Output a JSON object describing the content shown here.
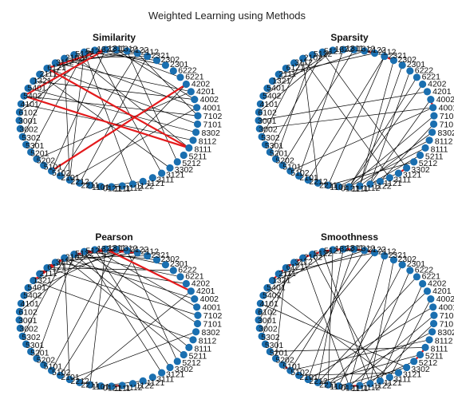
{
  "figure": {
    "title": "Weighted Learning using Methods"
  },
  "colors": {
    "node": "#1a6fb0",
    "edge": "#000000",
    "highlight": "#e41a1c",
    "label": "#111111"
  },
  "nodes": [
    "2321",
    "2302",
    "2301",
    "6222",
    "6221",
    "4202",
    "4201",
    "4002",
    "4001",
    "7102",
    "7101",
    "8302",
    "8112",
    "8111",
    "5211",
    "5212",
    "3302",
    "3121",
    "3111",
    "1121",
    "1122",
    "1112",
    "1111",
    "0121",
    "1101",
    "2211",
    "2212",
    "2101",
    "5102",
    "5101",
    "5202",
    "5201",
    "5301",
    "5302",
    "3002",
    "3001",
    "6102",
    "4101",
    "5402",
    "5401",
    "1321",
    "2111",
    "6121",
    "3112",
    "2102",
    "5122",
    "5121",
    "1322",
    "1311",
    "1312",
    "2122",
    "2112"
  ],
  "panels": [
    {
      "name": "Similarity",
      "title": "Similarity",
      "edges": [
        [
          0,
          25
        ],
        [
          0,
          44
        ],
        [
          1,
          46
        ],
        [
          2,
          47
        ],
        [
          4,
          48
        ],
        [
          5,
          24
        ],
        [
          6,
          30
        ],
        [
          6,
          43
        ],
        [
          7,
          49
        ],
        [
          7,
          40
        ],
        [
          8,
          44
        ],
        [
          8,
          26
        ],
        [
          9,
          38
        ],
        [
          9,
          51
        ],
        [
          10,
          42
        ],
        [
          11,
          39
        ],
        [
          12,
          37
        ],
        [
          13,
          45
        ],
        [
          15,
          50
        ],
        [
          16,
          41
        ],
        [
          17,
          47
        ],
        [
          19,
          23
        ],
        [
          20,
          46
        ],
        [
          21,
          22
        ],
        [
          26,
          44
        ],
        [
          27,
          51
        ],
        [
          28,
          48
        ],
        [
          31,
          46
        ],
        [
          33,
          44
        ],
        [
          36,
          47
        ],
        [
          38,
          48
        ],
        [
          40,
          47
        ],
        [
          42,
          50
        ],
        [
          43,
          51
        ],
        [
          45,
          47
        ],
        [
          46,
          26
        ]
      ],
      "highlighted": [
        [
          13,
          38
        ],
        [
          13,
          42
        ],
        [
          38,
          48
        ],
        [
          42,
          48
        ],
        [
          5,
          28
        ]
      ]
    },
    {
      "name": "Sparsity",
      "title": "Sparsity",
      "edges": [
        [
          0,
          24
        ],
        [
          1,
          21
        ],
        [
          2,
          21
        ],
        [
          3,
          20
        ],
        [
          4,
          22
        ],
        [
          5,
          22
        ],
        [
          6,
          35
        ],
        [
          7,
          20
        ],
        [
          8,
          34
        ],
        [
          9,
          22
        ],
        [
          10,
          19
        ],
        [
          11,
          21
        ],
        [
          12,
          23
        ],
        [
          13,
          22
        ],
        [
          14,
          20
        ],
        [
          15,
          24
        ],
        [
          16,
          46
        ],
        [
          17,
          20
        ],
        [
          18,
          44
        ],
        [
          25,
          44
        ],
        [
          26,
          0
        ],
        [
          27,
          48
        ],
        [
          28,
          8
        ],
        [
          29,
          49
        ],
        [
          30,
          45
        ],
        [
          31,
          46
        ],
        [
          33,
          44
        ],
        [
          36,
          47
        ],
        [
          38,
          47
        ],
        [
          40,
          50
        ],
        [
          41,
          51
        ]
      ],
      "highlighted": [
        [
          7,
          8
        ],
        [
          16,
          17
        ],
        [
          50,
          51
        ],
        [
          0,
          1
        ]
      ]
    },
    {
      "name": "Pearson",
      "title": "Pearson",
      "edges": [
        [
          0,
          44
        ],
        [
          1,
          46
        ],
        [
          2,
          47
        ],
        [
          3,
          42
        ],
        [
          4,
          45
        ],
        [
          5,
          43
        ],
        [
          6,
          25
        ],
        [
          7,
          44
        ],
        [
          8,
          47
        ],
        [
          9,
          42
        ],
        [
          10,
          46
        ],
        [
          11,
          26
        ],
        [
          12,
          40
        ],
        [
          13,
          45
        ],
        [
          14,
          44
        ],
        [
          15,
          50
        ],
        [
          16,
          47
        ],
        [
          17,
          46
        ],
        [
          19,
          23
        ],
        [
          24,
          48
        ],
        [
          26,
          44
        ],
        [
          27,
          51
        ],
        [
          28,
          49
        ],
        [
          30,
          45
        ],
        [
          33,
          44
        ],
        [
          36,
          47
        ],
        [
          38,
          49
        ],
        [
          40,
          50
        ],
        [
          41,
          44
        ],
        [
          43,
          51
        ]
      ],
      "highlighted": [
        [
          40,
          44
        ],
        [
          41,
          44
        ],
        [
          42,
          43
        ],
        [
          6,
          48
        ],
        [
          45,
          49
        ],
        [
          21,
          22
        ],
        [
          46,
          50
        ],
        [
          47,
          51
        ]
      ]
    },
    {
      "name": "Smoothness",
      "title": "Smoothness",
      "edges": [
        [
          0,
          22
        ],
        [
          1,
          20
        ],
        [
          2,
          23
        ],
        [
          3,
          21
        ],
        [
          4,
          25
        ],
        [
          5,
          19
        ],
        [
          6,
          24
        ],
        [
          7,
          18
        ],
        [
          8,
          26
        ],
        [
          9,
          22
        ],
        [
          10,
          20
        ],
        [
          11,
          24
        ],
        [
          12,
          28
        ],
        [
          13,
          31
        ],
        [
          14,
          25
        ],
        [
          15,
          21
        ],
        [
          16,
          23
        ],
        [
          17,
          27
        ],
        [
          19,
          45
        ],
        [
          20,
          46
        ],
        [
          22,
          44
        ],
        [
          24,
          47
        ],
        [
          25,
          48
        ],
        [
          26,
          49
        ],
        [
          28,
          50
        ],
        [
          29,
          51
        ],
        [
          30,
          42
        ],
        [
          33,
          43
        ],
        [
          35,
          44
        ],
        [
          38,
          47
        ],
        [
          40,
          50
        ],
        [
          41,
          51
        ],
        [
          18,
          39
        ],
        [
          16,
          37
        ]
      ],
      "highlighted": [
        [
          13,
          14
        ],
        [
          14,
          15
        ],
        [
          21,
          22
        ],
        [
          28,
          29
        ],
        [
          40,
          41
        ],
        [
          41,
          42
        ],
        [
          42,
          43
        ],
        [
          43,
          44
        ],
        [
          44,
          45
        ],
        [
          45,
          46
        ],
        [
          46,
          47
        ],
        [
          47,
          48
        ],
        [
          48,
          49
        ],
        [
          49,
          50
        ],
        [
          50,
          51
        ]
      ]
    }
  ]
}
